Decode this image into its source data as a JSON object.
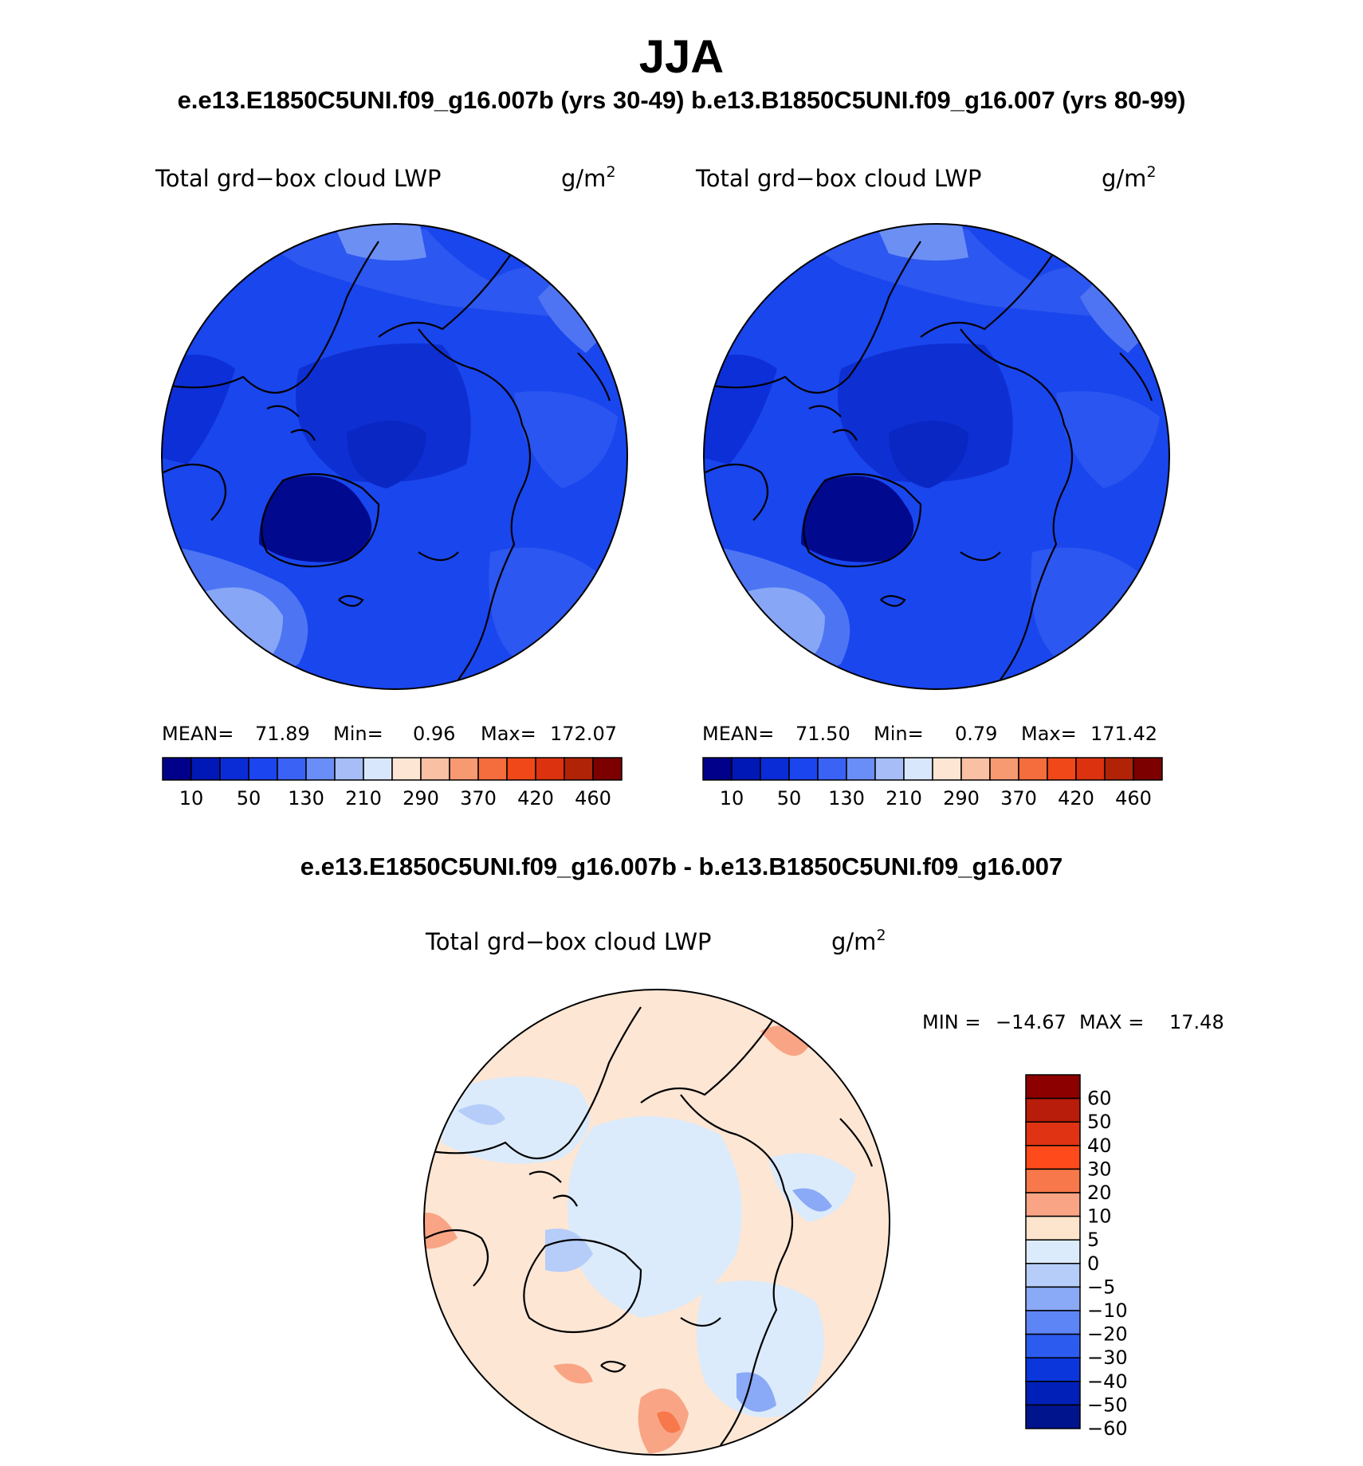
{
  "season": "JJA",
  "case_title": "e.e13.E1850C5UNI.f09_g16.007b (yrs 30-49)  b.e13.B1850C5UNI.f09_g16.007 (yrs 80-99)",
  "diff_title": "e.e13.E1850C5UNI.f09_g16.007b - b.e13.B1850C5UNI.f09_g16.007",
  "variable": "Total grd−box cloud LWP",
  "units": "g/m",
  "units_exp": "2",
  "panels": [
    {
      "mean_label": "MEAN=",
      "mean": "71.89",
      "min_label": "Min=",
      "min": "0.96",
      "max_label": "Max=",
      "max": "172.07"
    },
    {
      "mean_label": "MEAN=",
      "mean": "71.50",
      "min_label": "Min=",
      "min": "0.79",
      "max_label": "Max=",
      "max": "171.42"
    }
  ],
  "abs_colorbar": {
    "colors": [
      "#01008a",
      "#0018b5",
      "#0a2cd6",
      "#1b45ef",
      "#3a62f5",
      "#6a8ef7",
      "#a6bdf7",
      "#d8e7fb",
      "#fde6d4",
      "#f9c0a3",
      "#f79a72",
      "#f56d3d",
      "#f04818",
      "#dc3210",
      "#b02306",
      "#7c0000"
    ],
    "tick_labels": [
      "10",
      "50",
      "130",
      "210",
      "290",
      "370",
      "420",
      "460"
    ]
  },
  "diff_stats": {
    "min_label": "MIN =",
    "min": "−14.67",
    "max_label": "MAX =",
    "max": "17.48"
  },
  "diff_colorbar": {
    "colors_top_to_bottom": [
      "#8c0000",
      "#b81c0a",
      "#df3314",
      "#ff4b1b",
      "#f7784a",
      "#f9a585",
      "#fde4cc",
      "#dbebfb",
      "#b6cdfa",
      "#8aa9f7",
      "#5d85f5",
      "#2c5cef",
      "#0a36dc",
      "#0020b8",
      "#00148e"
    ],
    "tick_labels": [
      "60",
      "50",
      "40",
      "30",
      "20",
      "10",
      "5",
      "0",
      "−5",
      "−10",
      "−20",
      "−30",
      "−40",
      "−50",
      "−60"
    ]
  }
}
